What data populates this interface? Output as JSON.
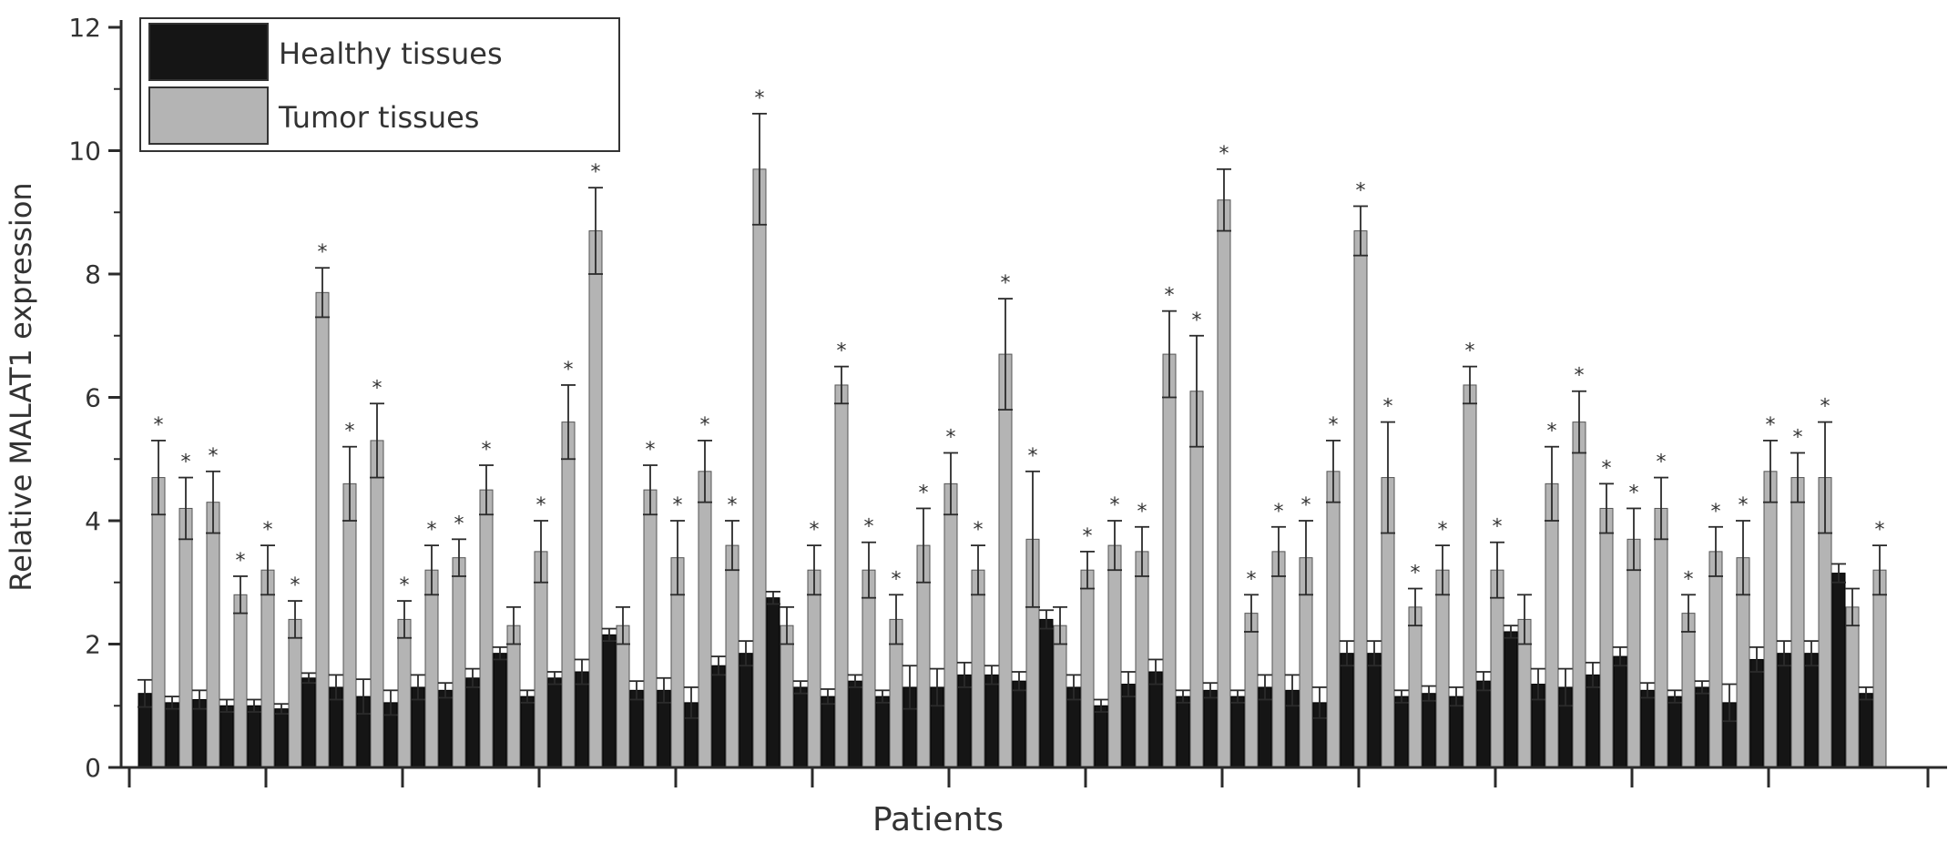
{
  "chart_data": {
    "type": "bar",
    "xlabel": "Patients",
    "ylabel": "Relative MALAT1 expression",
    "ylim": [
      0,
      12
    ],
    "yticks": [
      "0",
      "2",
      "4",
      "6",
      "8",
      "10",
      "12"
    ],
    "legend_position": "top-left",
    "series": [
      {
        "name": "Healthy tissues",
        "color": "#151515",
        "values": [
          1.2,
          1.05,
          1.1,
          1.0,
          1.0,
          0.95,
          1.45,
          1.3,
          1.15,
          1.05,
          1.3,
          1.25,
          1.45,
          1.85,
          1.15,
          1.45,
          1.55,
          2.15,
          1.25,
          1.25,
          1.05,
          1.65,
          1.85,
          2.75,
          1.3,
          1.15,
          1.4,
          1.15,
          1.3,
          1.3,
          1.5,
          1.5,
          1.4,
          2.4,
          1.3,
          1.0,
          1.35,
          1.55,
          1.15,
          1.25,
          1.15,
          1.3,
          1.25,
          1.05,
          1.85,
          1.85,
          1.15,
          1.2,
          1.15,
          1.4,
          2.2,
          1.35,
          1.3,
          1.5,
          1.8,
          1.25,
          1.15,
          1.3,
          1.05,
          1.75,
          1.85,
          1.85,
          3.15,
          1.2
        ],
        "errors": [
          0.22,
          0.1,
          0.15,
          0.1,
          0.1,
          0.08,
          0.08,
          0.2,
          0.28,
          0.2,
          0.2,
          0.12,
          0.15,
          0.1,
          0.1,
          0.1,
          0.2,
          0.1,
          0.15,
          0.2,
          0.25,
          0.15,
          0.2,
          0.1,
          0.1,
          0.12,
          0.1,
          0.1,
          0.35,
          0.3,
          0.2,
          0.15,
          0.15,
          0.15,
          0.2,
          0.1,
          0.2,
          0.2,
          0.1,
          0.12,
          0.1,
          0.2,
          0.25,
          0.25,
          0.2,
          0.2,
          0.1,
          0.12,
          0.15,
          0.15,
          0.1,
          0.25,
          0.3,
          0.2,
          0.15,
          0.12,
          0.1,
          0.1,
          0.3,
          0.2,
          0.2,
          0.2,
          0.15,
          0.1
        ]
      },
      {
        "name": "Tumor tissues",
        "color": "#b4b4b4",
        "values": [
          4.7,
          4.2,
          4.3,
          2.8,
          3.2,
          2.4,
          7.7,
          4.6,
          5.3,
          2.4,
          3.2,
          3.4,
          4.5,
          2.3,
          3.5,
          5.6,
          8.7,
          2.3,
          4.5,
          3.4,
          4.8,
          3.6,
          9.7,
          2.3,
          3.2,
          6.2,
          3.2,
          2.4,
          3.6,
          4.6,
          3.2,
          6.7,
          3.7,
          2.3,
          3.2,
          3.6,
          3.5,
          6.7,
          6.1,
          9.2,
          2.5,
          3.5,
          3.4,
          4.8,
          8.7,
          4.7,
          2.6,
          3.2,
          6.2,
          3.2,
          2.4,
          4.6,
          5.6,
          4.2,
          3.7,
          4.2,
          2.5,
          3.5,
          3.4,
          4.8,
          4.7,
          4.7,
          2.6,
          3.2
        ],
        "errors": [
          0.6,
          0.5,
          0.5,
          0.3,
          0.4,
          0.3,
          0.4,
          0.6,
          0.6,
          0.3,
          0.4,
          0.3,
          0.4,
          0.3,
          0.5,
          0.6,
          0.7,
          0.3,
          0.4,
          0.6,
          0.5,
          0.4,
          0.9,
          0.3,
          0.4,
          0.3,
          0.45,
          0.4,
          0.6,
          0.5,
          0.4,
          0.9,
          1.1,
          0.3,
          0.3,
          0.4,
          0.4,
          0.7,
          0.9,
          0.5,
          0.3,
          0.4,
          0.6,
          0.5,
          0.4,
          0.9,
          0.3,
          0.4,
          0.3,
          0.45,
          0.4,
          0.6,
          0.5,
          0.4,
          0.5,
          0.5,
          0.3,
          0.4,
          0.6,
          0.5,
          0.4,
          0.9,
          0.3,
          0.4
        ],
        "significant": [
          true,
          true,
          true,
          true,
          true,
          true,
          true,
          true,
          true,
          true,
          true,
          true,
          true,
          false,
          true,
          true,
          true,
          false,
          true,
          true,
          true,
          true,
          true,
          false,
          true,
          true,
          true,
          true,
          true,
          true,
          true,
          true,
          true,
          false,
          true,
          true,
          true,
          true,
          true,
          true,
          true,
          true,
          true,
          true,
          true,
          true,
          true,
          true,
          true,
          true,
          false,
          true,
          true,
          true,
          true,
          true,
          true,
          true,
          true,
          true,
          true,
          true,
          false,
          true
        ]
      }
    ],
    "annotation_symbol": "*",
    "axis_color": "#2b2b2b",
    "error_color": "#2b2b2b"
  }
}
